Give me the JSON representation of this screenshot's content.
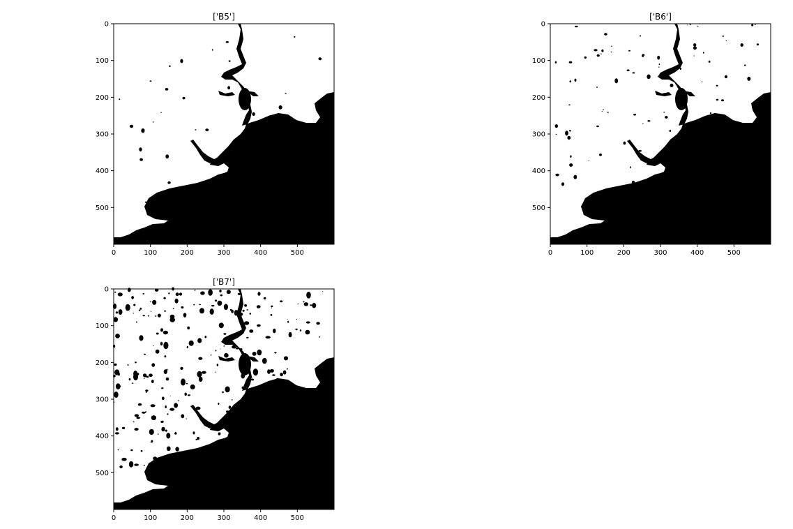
{
  "figure": {
    "panels": [
      {
        "title": "['B5']",
        "band": "B5"
      },
      {
        "title": "['B6']",
        "band": "B6"
      },
      {
        "title": "['B7']",
        "band": "B7"
      }
    ]
  },
  "chart_data": [
    {
      "type": "heatmap",
      "title": "['B5']",
      "xlabel": "",
      "ylabel": "",
      "xlim": [
        0,
        600
      ],
      "ylim": [
        600,
        0
      ],
      "x_ticks": [
        0,
        100,
        200,
        300,
        400,
        500
      ],
      "y_ticks": [
        0,
        100,
        200,
        300,
        400,
        500
      ],
      "colormap": [
        "#000000",
        "#ffffff"
      ],
      "grid": false,
      "legend": "none"
    },
    {
      "type": "heatmap",
      "title": "['B6']",
      "xlabel": "",
      "ylabel": "",
      "xlim": [
        0,
        600
      ],
      "ylim": [
        600,
        0
      ],
      "x_ticks": [
        0,
        100,
        200,
        300,
        400,
        500
      ],
      "y_ticks": [
        0,
        100,
        200,
        300,
        400,
        500
      ],
      "colormap": [
        "#000000",
        "#ffffff"
      ],
      "grid": false,
      "legend": "none"
    },
    {
      "type": "heatmap",
      "title": "['B7']",
      "xlabel": "",
      "ylabel": "",
      "xlim": [
        0,
        600
      ],
      "ylim": [
        600,
        0
      ],
      "x_ticks": [
        0,
        100,
        200,
        300,
        400,
        500
      ],
      "y_ticks": [
        0,
        100,
        200,
        300,
        400,
        500
      ],
      "colormap": [
        "#000000",
        "#ffffff"
      ],
      "grid": false,
      "legend": "none"
    }
  ]
}
